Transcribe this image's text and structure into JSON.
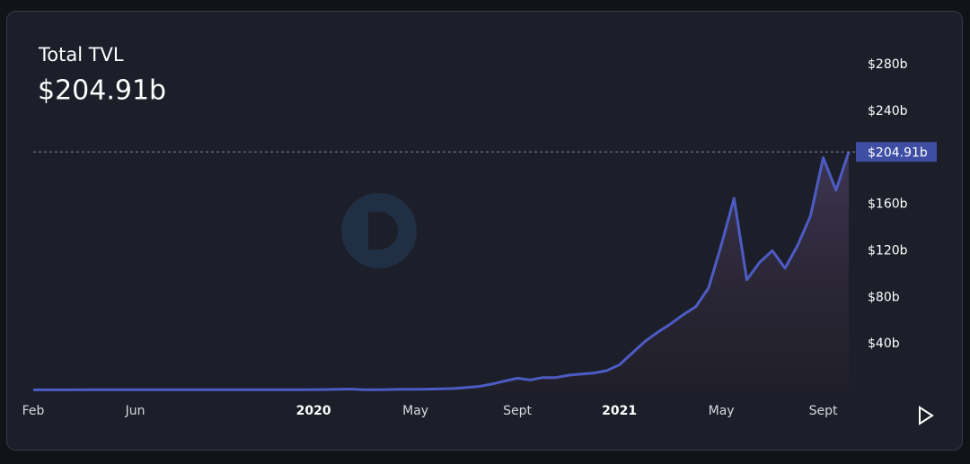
{
  "chart_data": {
    "type": "area",
    "title": "Total TVL",
    "current_label": "$204.91b",
    "categories": [
      "Feb",
      null,
      null,
      null,
      null,
      null,
      null,
      null,
      "Jun",
      null,
      null,
      null,
      null,
      null,
      null,
      null,
      null,
      null,
      null,
      null,
      null,
      null,
      "2020",
      null,
      null,
      null,
      null,
      null,
      null,
      null,
      "May",
      null,
      null,
      null,
      null,
      null,
      null,
      null,
      "Sept",
      null,
      null,
      null,
      null,
      null,
      null,
      null,
      "2021",
      null,
      null,
      null,
      null,
      null,
      null,
      null,
      "May",
      null,
      null,
      null,
      null,
      null,
      null,
      null,
      "Sept",
      null,
      null
    ],
    "series": [
      {
        "name": "Total TVL",
        "color": "#4d5cc4",
        "values": [
          0.5,
          0.5,
          0.5,
          0.5,
          0.55,
          0.6,
          0.6,
          0.6,
          0.6,
          0.6,
          0.6,
          0.6,
          0.6,
          0.6,
          0.6,
          0.6,
          0.6,
          0.6,
          0.65,
          0.65,
          0.65,
          0.65,
          0.7,
          0.8,
          1.0,
          1.1,
          0.6,
          0.6,
          0.8,
          0.9,
          1.0,
          1.1,
          1.3,
          1.6,
          2.5,
          3.5,
          5.5,
          8,
          10.5,
          9,
          11,
          11,
          13,
          14,
          15,
          17,
          22,
          32,
          42,
          50,
          57,
          65,
          72,
          88,
          125,
          165,
          95,
          110,
          120,
          105,
          125,
          150,
          200,
          172,
          204.91
        ]
      }
    ],
    "ylim": [
      0,
      300
    ],
    "yticks": [
      {
        "value": 40,
        "label": "$40b"
      },
      {
        "value": 80,
        "label": "$80b"
      },
      {
        "value": 120,
        "label": "$120b"
      },
      {
        "value": 160,
        "label": "$160b"
      },
      {
        "value": 240,
        "label": "$240b"
      },
      {
        "value": 280,
        "label": "$280b"
      }
    ],
    "grid": false
  }
}
